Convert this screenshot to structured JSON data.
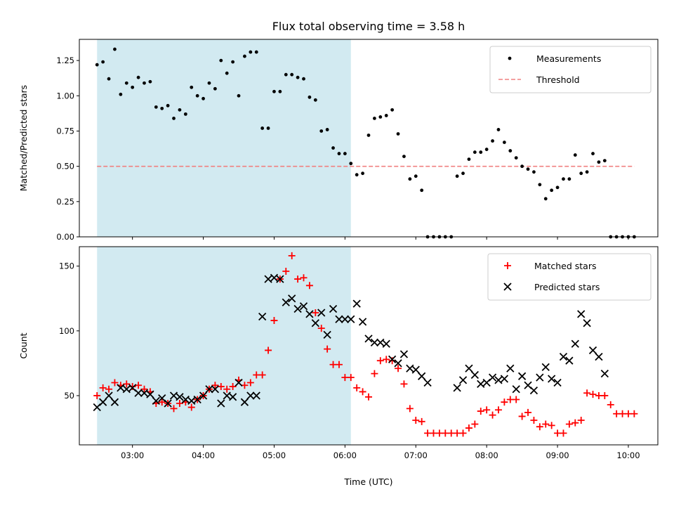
{
  "chart_data": [
    {
      "type": "scatter",
      "title": "Flux total observing time = 3.58 h",
      "xlabel": "",
      "ylabel": "Matched/Predicted stars",
      "xlim": [
        "02:15",
        "10:25"
      ],
      "ylim": [
        0,
        1.4
      ],
      "yticks": [
        "0.00",
        "0.25",
        "0.50",
        "0.75",
        "1.00",
        "1.25"
      ],
      "grid": false,
      "legend_position": "upper right",
      "shaded_interval": {
        "start": "02:30",
        "end": "06:05",
        "color": "#add8e6"
      },
      "threshold": {
        "name": "Threshold",
        "value": 0.5,
        "x_start": "02:30",
        "x_end": "10:05",
        "color": "#f08080",
        "style": "dashed"
      },
      "series": [
        {
          "name": "Measurements",
          "marker": "dot",
          "color": "#000000",
          "x": [
            "02:30",
            "02:35",
            "02:40",
            "02:45",
            "02:50",
            "02:55",
            "03:00",
            "03:05",
            "03:10",
            "03:15",
            "03:20",
            "03:25",
            "03:30",
            "03:35",
            "03:40",
            "03:45",
            "03:50",
            "03:55",
            "04:00",
            "04:05",
            "04:10",
            "04:15",
            "04:20",
            "04:25",
            "04:30",
            "04:35",
            "04:40",
            "04:45",
            "04:50",
            "04:55",
            "05:00",
            "05:05",
            "05:10",
            "05:15",
            "05:20",
            "05:25",
            "05:30",
            "05:35",
            "05:40",
            "05:45",
            "05:50",
            "05:55",
            "06:00",
            "06:05",
            "06:10",
            "06:15",
            "06:20",
            "06:25",
            "06:30",
            "06:35",
            "06:40",
            "06:45",
            "06:50",
            "06:55",
            "07:00",
            "07:05",
            "07:10",
            "07:15",
            "07:20",
            "07:25",
            "07:30",
            "07:35",
            "07:40",
            "07:45",
            "07:50",
            "07:55",
            "08:00",
            "08:05",
            "08:10",
            "08:15",
            "08:20",
            "08:25",
            "08:30",
            "08:35",
            "08:40",
            "08:45",
            "08:50",
            "08:55",
            "09:00",
            "09:05",
            "09:10",
            "09:15",
            "09:20",
            "09:25",
            "09:30",
            "09:35",
            "09:40",
            "09:45",
            "09:50",
            "09:55",
            "10:00",
            "10:05"
          ],
          "y": [
            1.22,
            1.24,
            1.12,
            1.33,
            1.01,
            1.09,
            1.06,
            1.13,
            1.09,
            1.1,
            0.92,
            0.91,
            0.93,
            0.84,
            0.9,
            0.87,
            1.06,
            1.0,
            0.98,
            1.09,
            1.05,
            1.25,
            1.16,
            1.24,
            1.0,
            1.28,
            1.31,
            1.31,
            0.77,
            0.77,
            1.03,
            1.03,
            1.15,
            1.15,
            1.13,
            1.12,
            0.99,
            0.97,
            0.75,
            0.76,
            0.63,
            0.59,
            0.59,
            0.52,
            0.44,
            0.45,
            0.72,
            0.84,
            0.85,
            0.86,
            0.9,
            0.73,
            0.57,
            0.41,
            0.43,
            0.33,
            0.0,
            0.0,
            0.0,
            0.0,
            0.0,
            0.43,
            0.45,
            0.55,
            0.6,
            0.6,
            0.62,
            0.68,
            0.76,
            0.67,
            0.61,
            0.56,
            0.5,
            0.48,
            0.46,
            0.37,
            0.27,
            0.33,
            0.35,
            0.41,
            0.41,
            0.58,
            0.45,
            0.46,
            0.59,
            0.53,
            0.54,
            0.0,
            0.0,
            0.0,
            0.0,
            0.0
          ]
        }
      ]
    },
    {
      "type": "scatter",
      "title": "",
      "xlabel": "Time (UTC)",
      "ylabel": "Count",
      "xlim": [
        "02:15",
        "10:25"
      ],
      "ylim": [
        12,
        165
      ],
      "yticks": [
        "50",
        "100",
        "150"
      ],
      "xticks": [
        "03:00",
        "04:00",
        "05:00",
        "06:00",
        "07:00",
        "08:00",
        "09:00",
        "10:00"
      ],
      "grid": false,
      "legend_position": "upper right",
      "shaded_interval": {
        "start": "02:30",
        "end": "06:05",
        "color": "#add8e6"
      },
      "series": [
        {
          "name": "Matched stars",
          "marker": "plus",
          "color": "#ff0000",
          "x": [
            "02:30",
            "02:35",
            "02:40",
            "02:45",
            "02:50",
            "02:55",
            "03:00",
            "03:05",
            "03:10",
            "03:15",
            "03:20",
            "03:25",
            "03:30",
            "03:35",
            "03:40",
            "03:45",
            "03:50",
            "03:55",
            "04:00",
            "04:05",
            "04:10",
            "04:15",
            "04:20",
            "04:25",
            "04:30",
            "04:35",
            "04:40",
            "04:45",
            "04:50",
            "04:55",
            "05:00",
            "05:05",
            "05:10",
            "05:15",
            "05:20",
            "05:25",
            "05:30",
            "05:35",
            "05:40",
            "05:45",
            "05:50",
            "05:55",
            "06:00",
            "06:05",
            "06:10",
            "06:15",
            "06:20",
            "06:25",
            "06:30",
            "06:35",
            "06:40",
            "06:45",
            "06:50",
            "06:55",
            "07:00",
            "07:05",
            "07:10",
            "07:15",
            "07:20",
            "07:25",
            "07:30",
            "07:35",
            "07:40",
            "07:45",
            "07:50",
            "07:55",
            "08:00",
            "08:05",
            "08:10",
            "08:15",
            "08:20",
            "08:25",
            "08:30",
            "08:35",
            "08:40",
            "08:45",
            "08:50",
            "08:55",
            "09:00",
            "09:05",
            "09:10",
            "09:15",
            "09:20",
            "09:25",
            "09:30",
            "09:35",
            "09:40",
            "09:45",
            "09:50",
            "09:55",
            "10:00",
            "10:05"
          ],
          "y": [
            50,
            56,
            55,
            60,
            58,
            59,
            57,
            58,
            55,
            53,
            44,
            45,
            44,
            40,
            44,
            45,
            41,
            47,
            50,
            55,
            58,
            57,
            55,
            57,
            62,
            58,
            60,
            66,
            66,
            85,
            108,
            140,
            146,
            158,
            140,
            141,
            135,
            114,
            102,
            86,
            74,
            74,
            64,
            64,
            56,
            53,
            49,
            67,
            77,
            78,
            77,
            71,
            59,
            40,
            31,
            30,
            21,
            21,
            21,
            21,
            21,
            21,
            21,
            25,
            28,
            38,
            39,
            35,
            39,
            45,
            47,
            47,
            34,
            37,
            31,
            26,
            28,
            27,
            21,
            21,
            28,
            29,
            31,
            52,
            51,
            50,
            50,
            43,
            36,
            36,
            36,
            36
          ]
        },
        {
          "name": "Predicted stars",
          "marker": "x",
          "color": "#000000",
          "x": [
            "02:30",
            "02:35",
            "02:40",
            "02:45",
            "02:50",
            "02:55",
            "03:00",
            "03:05",
            "03:10",
            "03:15",
            "03:20",
            "03:25",
            "03:30",
            "03:35",
            "03:40",
            "03:45",
            "03:50",
            "03:55",
            "04:00",
            "04:05",
            "04:10",
            "04:15",
            "04:20",
            "04:25",
            "04:30",
            "04:35",
            "04:40",
            "04:45",
            "04:50",
            "04:55",
            "05:00",
            "05:05",
            "05:10",
            "05:15",
            "05:20",
            "05:25",
            "05:30",
            "05:35",
            "05:40",
            "05:45",
            "05:50",
            "05:55",
            "06:00",
            "06:05",
            "06:10",
            "06:15",
            "06:20",
            "06:25",
            "06:30",
            "06:35",
            "06:40",
            "06:45",
            "06:50",
            "06:55",
            "07:00",
            "07:05",
            "07:10",
            "07:15",
            "07:20",
            "07:25",
            "07:30",
            "07:35",
            "07:40",
            "07:45",
            "07:50",
            "07:55",
            "08:00",
            "08:05",
            "08:10",
            "08:15",
            "08:20",
            "08:25",
            "08:30",
            "08:35",
            "08:40",
            "08:45",
            "08:50",
            "08:55",
            "09:00",
            "09:05",
            "09:10",
            "09:15",
            "09:20",
            "09:25",
            "09:30",
            "09:35",
            "09:40",
            "09:45",
            "09:50",
            "09:55",
            "10:00",
            "10:05"
          ],
          "y": [
            41,
            45,
            50,
            45,
            56,
            55,
            56,
            52,
            52,
            51,
            46,
            48,
            44,
            50,
            49,
            47,
            46,
            47,
            50,
            55,
            55,
            44,
            50,
            49,
            60,
            45,
            50,
            50,
            111,
            140,
            141,
            140,
            122,
            125,
            117,
            119,
            113,
            106,
            114,
            97,
            117,
            109,
            109,
            109,
            121,
            107,
            94,
            91,
            91,
            90,
            78,
            75,
            82,
            71,
            70,
            65,
            60,
            null,
            null,
            null,
            null,
            56,
            62,
            71,
            66,
            59,
            60,
            64,
            62,
            63,
            71,
            55,
            65,
            58,
            54,
            64,
            72,
            63,
            60,
            80,
            77,
            90,
            113,
            106,
            85,
            80,
            67,
            null,
            null,
            null,
            null,
            null
          ]
        }
      ]
    }
  ]
}
